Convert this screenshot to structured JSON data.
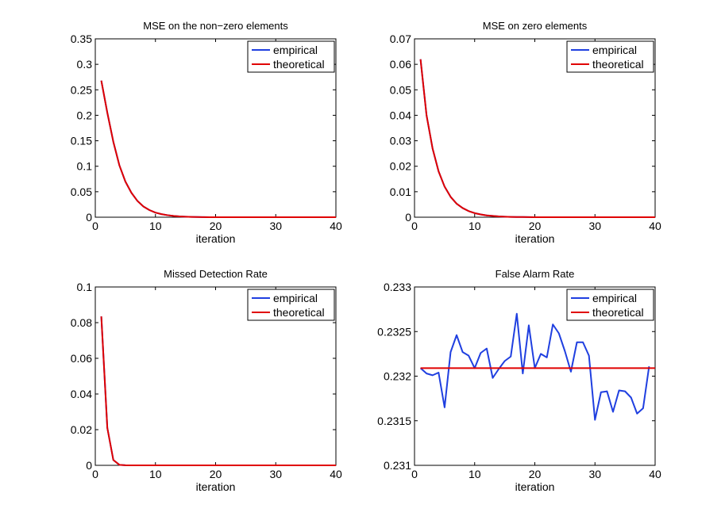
{
  "figure": {
    "background": "#ffffff"
  },
  "chart_data": [
    {
      "type": "line",
      "title": "MSE on the non−zero elements",
      "xlabel": "iteration",
      "ylabel": "",
      "xlim": [
        0,
        40
      ],
      "ylim": [
        0,
        0.35
      ],
      "xticks": [
        0,
        10,
        20,
        30,
        40
      ],
      "xtick_labels": [
        "0",
        "10",
        "20",
        "30",
        "40"
      ],
      "yticks": [
        0,
        0.05,
        0.1,
        0.15,
        0.2,
        0.25,
        0.3,
        0.35
      ],
      "ytick_labels": [
        "0",
        "0.05",
        "0.1",
        "0.15",
        "0.2",
        "0.25",
        "0.3",
        "0.35"
      ],
      "legend_position": "top-right",
      "series": [
        {
          "name": "empirical",
          "color": "#1f3fe0",
          "x": [
            1,
            2,
            3,
            4,
            5,
            6,
            7,
            8,
            9,
            10,
            11,
            12,
            13,
            14,
            15,
            16,
            17,
            18,
            19,
            20,
            25,
            30,
            35,
            40
          ],
          "y": [
            0.268,
            0.205,
            0.148,
            0.102,
            0.07,
            0.048,
            0.032,
            0.021,
            0.014,
            0.009,
            0.006,
            0.004,
            0.0025,
            0.0016,
            0.001,
            0.0006,
            0.0004,
            0.0002,
            0.0001,
            5e-05,
            0,
            0,
            0,
            0
          ]
        },
        {
          "name": "theoretical",
          "color": "#e00000",
          "x": [
            1,
            2,
            3,
            4,
            5,
            6,
            7,
            8,
            9,
            10,
            11,
            12,
            13,
            14,
            15,
            16,
            17,
            18,
            19,
            20,
            25,
            30,
            35,
            40
          ],
          "y": [
            0.268,
            0.205,
            0.148,
            0.102,
            0.07,
            0.048,
            0.032,
            0.021,
            0.014,
            0.009,
            0.006,
            0.004,
            0.0025,
            0.0016,
            0.001,
            0.0006,
            0.0004,
            0.0002,
            0.0001,
            5e-05,
            0,
            0,
            0,
            0
          ]
        }
      ]
    },
    {
      "type": "line",
      "title": "MSE on zero elements",
      "xlabel": "iteration",
      "ylabel": "",
      "xlim": [
        0,
        40
      ],
      "ylim": [
        0,
        0.07
      ],
      "xticks": [
        0,
        10,
        20,
        30,
        40
      ],
      "xtick_labels": [
        "0",
        "10",
        "20",
        "30",
        "40"
      ],
      "yticks": [
        0,
        0.01,
        0.02,
        0.03,
        0.04,
        0.05,
        0.06,
        0.07
      ],
      "ytick_labels": [
        "0",
        "0.01",
        "0.02",
        "0.03",
        "0.04",
        "0.05",
        "0.06",
        "0.07"
      ],
      "legend_position": "top-right",
      "series": [
        {
          "name": "empirical",
          "color": "#1f3fe0",
          "x": [
            1,
            2,
            3,
            4,
            5,
            6,
            7,
            8,
            9,
            10,
            11,
            12,
            13,
            14,
            15,
            16,
            17,
            18,
            19,
            20,
            25,
            30,
            35,
            40
          ],
          "y": [
            0.062,
            0.04,
            0.027,
            0.018,
            0.012,
            0.008,
            0.0053,
            0.0036,
            0.0024,
            0.0016,
            0.0011,
            0.0007,
            0.0005,
            0.0003,
            0.0002,
            0.00013,
            9e-05,
            6e-05,
            4e-05,
            2e-05,
            0,
            0,
            0,
            0
          ]
        },
        {
          "name": "theoretical",
          "color": "#e00000",
          "x": [
            1,
            2,
            3,
            4,
            5,
            6,
            7,
            8,
            9,
            10,
            11,
            12,
            13,
            14,
            15,
            16,
            17,
            18,
            19,
            20,
            25,
            30,
            35,
            40
          ],
          "y": [
            0.062,
            0.04,
            0.027,
            0.018,
            0.012,
            0.008,
            0.0053,
            0.0036,
            0.0024,
            0.0016,
            0.0011,
            0.0007,
            0.0005,
            0.0003,
            0.0002,
            0.00013,
            9e-05,
            6e-05,
            4e-05,
            2e-05,
            0,
            0,
            0,
            0
          ]
        }
      ]
    },
    {
      "type": "line",
      "title": "Missed Detection Rate",
      "xlabel": "iteration",
      "ylabel": "",
      "xlim": [
        0,
        40
      ],
      "ylim": [
        0,
        0.1
      ],
      "xticks": [
        0,
        10,
        20,
        30,
        40
      ],
      "xtick_labels": [
        "0",
        "10",
        "20",
        "30",
        "40"
      ],
      "yticks": [
        0,
        0.02,
        0.04,
        0.06,
        0.08,
        0.1
      ],
      "ytick_labels": [
        "0",
        "0.02",
        "0.04",
        "0.06",
        "0.08",
        "0.1"
      ],
      "legend_position": "top-right",
      "series": [
        {
          "name": "empirical",
          "color": "#1f3fe0",
          "x": [
            1,
            2,
            3,
            4,
            5,
            6,
            7,
            8,
            10,
            15,
            20,
            25,
            30,
            35,
            40
          ],
          "y": [
            0.0835,
            0.021,
            0.003,
            0.0003,
            5e-05,
            0,
            0,
            0,
            0,
            0,
            0,
            0,
            0,
            0,
            0
          ]
        },
        {
          "name": "theoretical",
          "color": "#e00000",
          "x": [
            1,
            2,
            3,
            4,
            5,
            6,
            7,
            8,
            10,
            15,
            20,
            25,
            30,
            35,
            40
          ],
          "y": [
            0.0835,
            0.021,
            0.003,
            0.0003,
            5e-05,
            0,
            0,
            0,
            0,
            0,
            0,
            0,
            0,
            0,
            0
          ]
        }
      ]
    },
    {
      "type": "line",
      "title": "False Alarm Rate",
      "xlabel": "iteration",
      "ylabel": "",
      "xlim": [
        0,
        40
      ],
      "ylim": [
        0.231,
        0.233
      ],
      "xticks": [
        0,
        10,
        20,
        30,
        40
      ],
      "xtick_labels": [
        "0",
        "10",
        "20",
        "30",
        "40"
      ],
      "yticks": [
        0.231,
        0.2315,
        0.232,
        0.2325,
        0.233
      ],
      "ytick_labels": [
        "0.231",
        "0.2315",
        "0.232",
        "0.2325",
        "0.233"
      ],
      "legend_position": "top-right",
      "series": [
        {
          "name": "empirical",
          "color": "#1f3fe0",
          "x": [
            1,
            2,
            3,
            4,
            5,
            6,
            7,
            8,
            9,
            10,
            11,
            12,
            13,
            14,
            15,
            16,
            17,
            18,
            19,
            20,
            21,
            22,
            23,
            24,
            25,
            26,
            27,
            28,
            29,
            30,
            31,
            32,
            33,
            34,
            35,
            36,
            37,
            38,
            39
          ],
          "y": [
            0.23209,
            0.23203,
            0.23201,
            0.23204,
            0.23165,
            0.23227,
            0.23246,
            0.23227,
            0.23223,
            0.23209,
            0.23226,
            0.23231,
            0.23198,
            0.23208,
            0.23217,
            0.23222,
            0.2327,
            0.23203,
            0.23257,
            0.23209,
            0.23225,
            0.23221,
            0.23258,
            0.23248,
            0.23228,
            0.23205,
            0.23238,
            0.23238,
            0.23223,
            0.23151,
            0.23182,
            0.23183,
            0.2316,
            0.23184,
            0.23183,
            0.23176,
            0.23158,
            0.23164,
            0.23211
          ]
        },
        {
          "name": "theoretical",
          "color": "#e00000",
          "x": [
            1,
            40
          ],
          "y": [
            0.23209,
            0.23209
          ]
        }
      ]
    }
  ]
}
